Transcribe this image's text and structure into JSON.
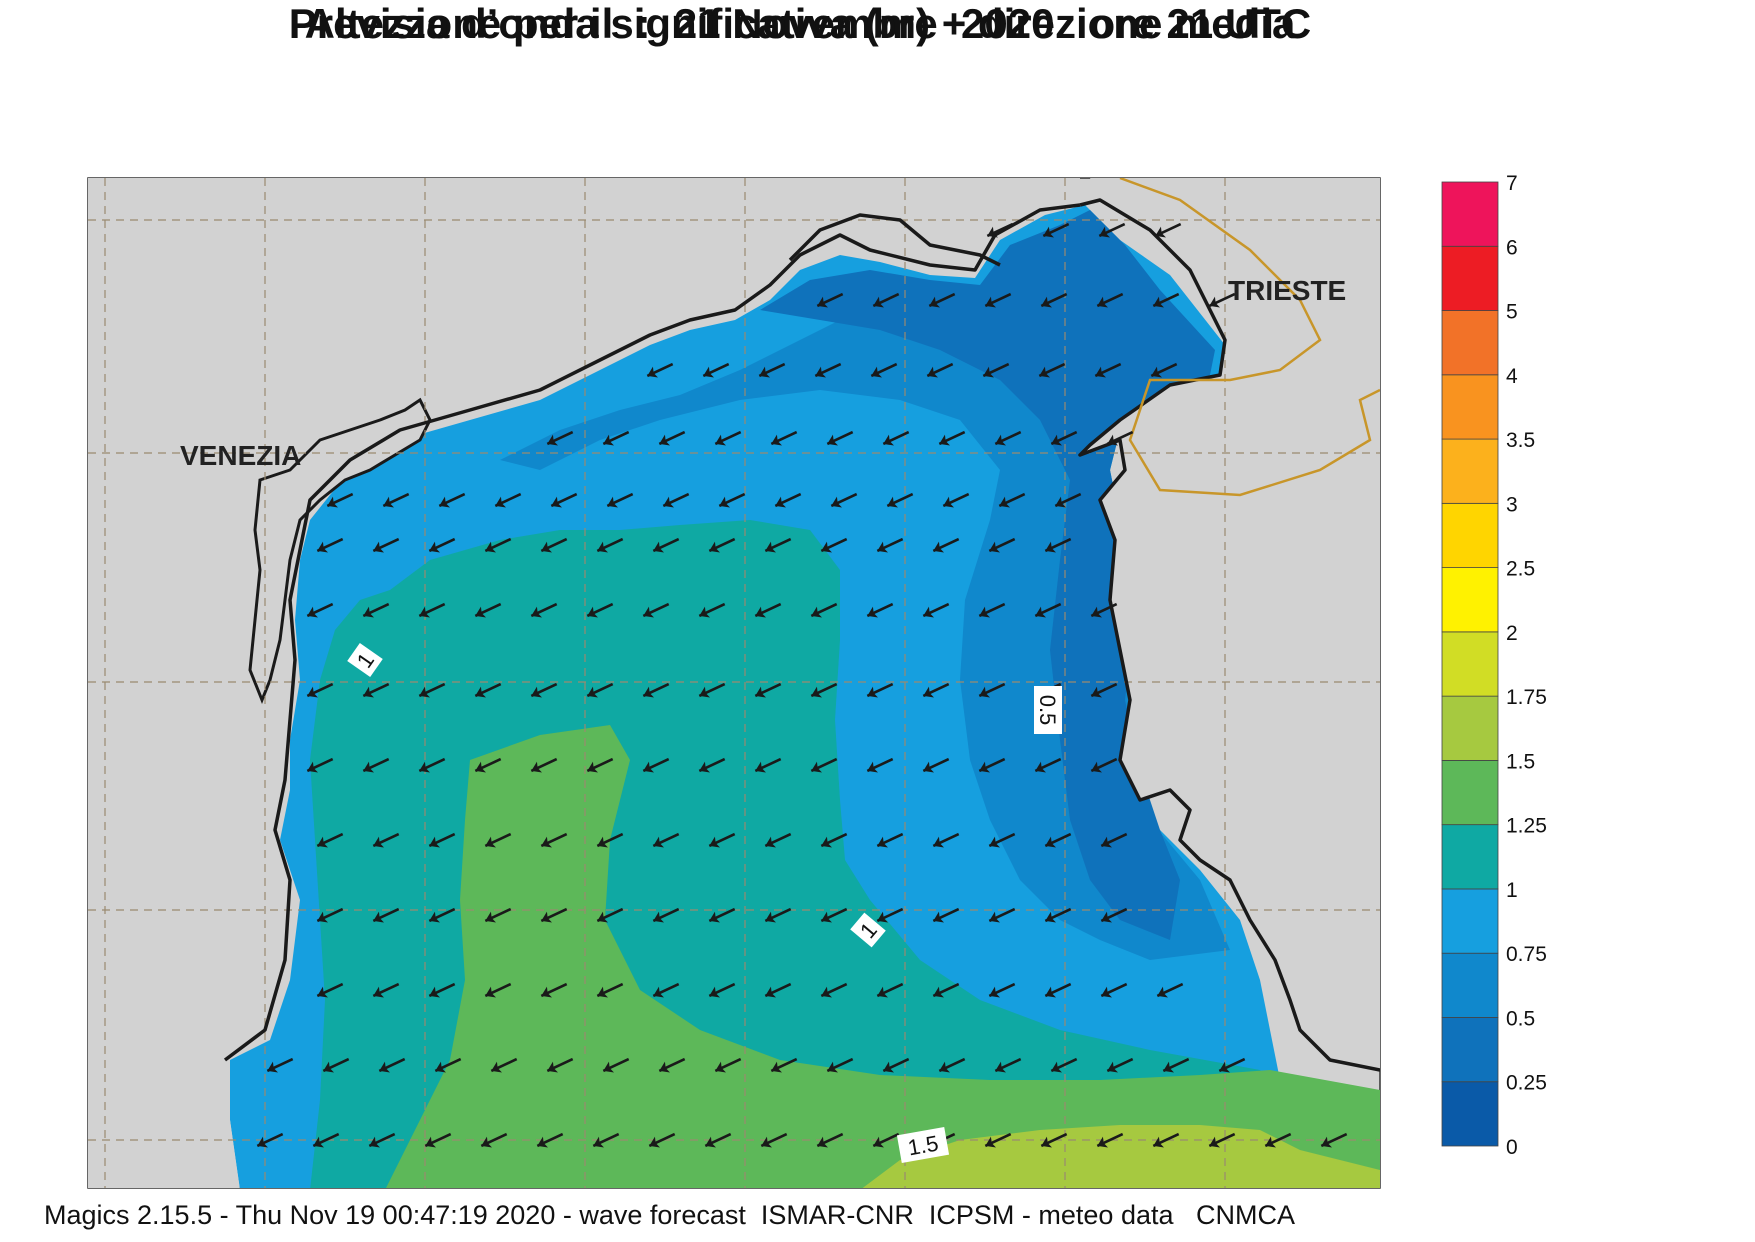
{
  "title_line1": "Previsione per il  :  21 Novembre  2020   ore 21 UTC",
  "title_line2": "Altezza d’onda significativa (m) + direzione media",
  "cities": {
    "venezia": "VENEZIA",
    "trieste": "TRIESTE"
  },
  "contour_labels": {
    "c1_west": "1",
    "c05_east": "0.5",
    "c1_center": "1",
    "c15_south": "1.5"
  },
  "legend": {
    "levels": [
      "0",
      "0.25",
      "0.5",
      "0.75",
      "1",
      "1.25",
      "1.5",
      "1.75",
      "2",
      "2.5",
      "3",
      "3.5",
      "4",
      "5",
      "6",
      "7"
    ],
    "colors": [
      "#0a5aa8",
      "#0f72bb",
      "#1088cc",
      "#169fdf",
      "#0fa9a3",
      "#5db859",
      "#a6c940",
      "#d1dd25",
      "#fff200",
      "#ffd500",
      "#fcb11c",
      "#f9931f",
      "#f27228",
      "#ed1c24",
      "#ee145b"
    ]
  },
  "colors": {
    "land": "#d2d2d2",
    "coast": "#1a1a1a",
    "border": "#c8962a",
    "grid": "#9a8a70",
    "arrow": "#1a1a1a"
  },
  "wave_direction": "towards south-west",
  "footer": "Magics 2.15.5 - Thu Nov 19 00:47:19 2020 - wave forecast  ISMAR-CNR  ICPSM - meteo data   CNMCA"
}
